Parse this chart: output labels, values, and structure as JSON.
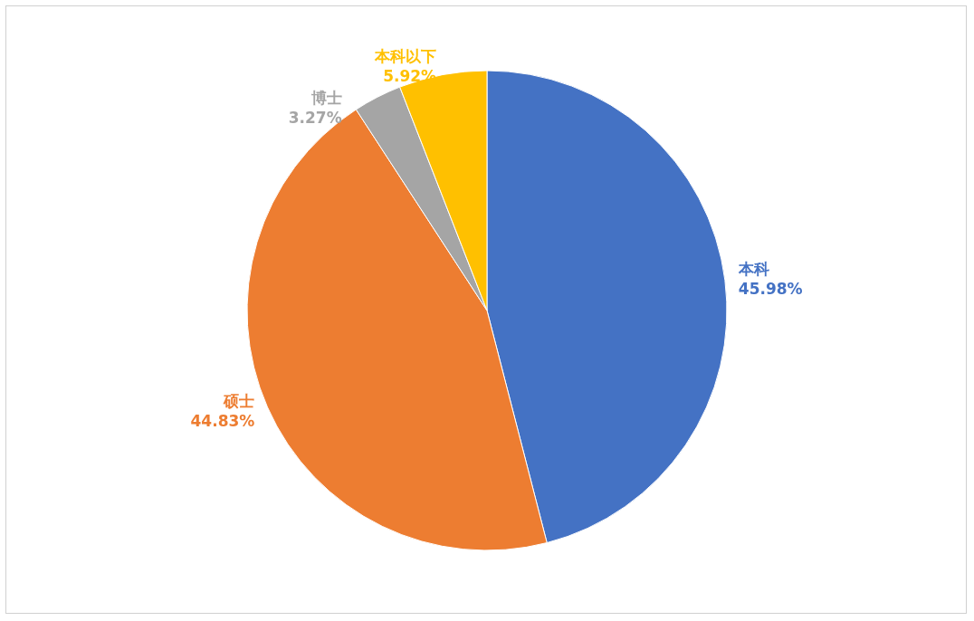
{
  "chart_data": {
    "type": "pie",
    "categories": [
      "本科",
      "硕士",
      "博士",
      "本科以下"
    ],
    "values": [
      45.98,
      44.83,
      3.27,
      5.92
    ],
    "colors": [
      "#4472c4",
      "#ed7d31",
      "#a5a5a5",
      "#ffc000"
    ],
    "value_labels": [
      "45.98%",
      "44.83%",
      "3.27%",
      "5.92%"
    ],
    "legend": false
  }
}
